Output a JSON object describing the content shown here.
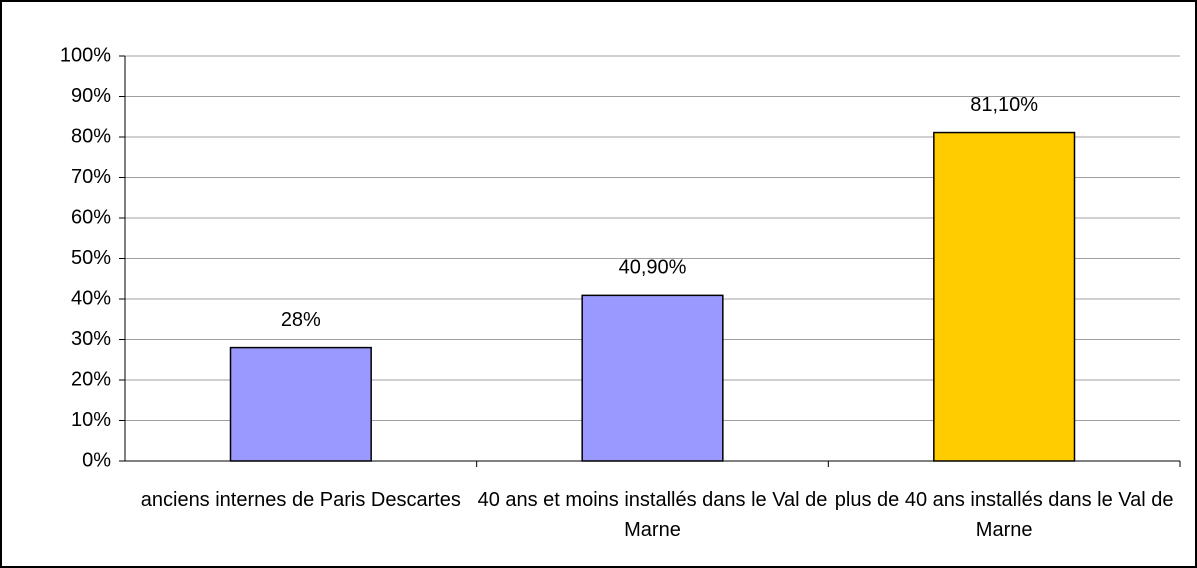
{
  "chart_data": {
    "type": "bar",
    "categories": [
      "anciens internes de Paris Descartes",
      "40 ans et moins installés dans le Val de Marne",
      "plus de 40 ans installés dans le Val de Marne"
    ],
    "values": [
      28,
      40.9,
      81.1
    ],
    "value_labels": [
      "28%",
      "40,90%",
      "81,10%"
    ],
    "colors": [
      "#9999ff",
      "#9999ff",
      "#ffcc00"
    ],
    "ylim": [
      0,
      100
    ],
    "yticks": [
      {
        "value": 0,
        "label": "0%"
      },
      {
        "value": 10,
        "label": "10%"
      },
      {
        "value": 20,
        "label": "20%"
      },
      {
        "value": 30,
        "label": "30%"
      },
      {
        "value": 40,
        "label": "40%"
      },
      {
        "value": 50,
        "label": "50%"
      },
      {
        "value": 60,
        "label": "60%"
      },
      {
        "value": 70,
        "label": "70%"
      },
      {
        "value": 80,
        "label": "80%"
      },
      {
        "value": 90,
        "label": "90%"
      },
      {
        "value": 100,
        "label": "100%"
      }
    ],
    "grid": true
  }
}
